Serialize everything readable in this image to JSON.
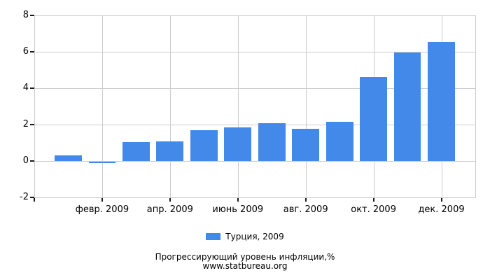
{
  "chart_data": {
    "type": "bar",
    "title": "Прогрессирующий уровень инфляции,%",
    "source": "www.statbureau.org",
    "x": [
      1,
      2,
      3,
      4,
      5,
      6,
      7,
      8,
      9,
      10,
      11,
      12
    ],
    "series": [
      {
        "name": "Турция, 2009",
        "color": "#4289E9",
        "values": [
          0.29,
          -0.05,
          1.05,
          1.07,
          1.71,
          1.83,
          2.08,
          1.77,
          2.17,
          4.63,
          5.96,
          6.53
        ]
      }
    ],
    "x_tick_labels": [
      "февр. 2009",
      "апр. 2009",
      "июнь 2009",
      "авг. 2009",
      "окт. 2009",
      "дек. 2009"
    ],
    "x_tick_positions": [
      2,
      4,
      6,
      8,
      10,
      12
    ],
    "y_ticks": [
      8,
      6,
      4,
      2,
      0,
      -2
    ],
    "ylim": [
      -2,
      8
    ],
    "grid": true,
    "legend_position": "bottom"
  },
  "colors": {
    "bar": "#4289E9",
    "grid": "#CCCCCC",
    "tick": "#1A1A1A",
    "text": "#000000",
    "background": "#FFFFFF"
  }
}
